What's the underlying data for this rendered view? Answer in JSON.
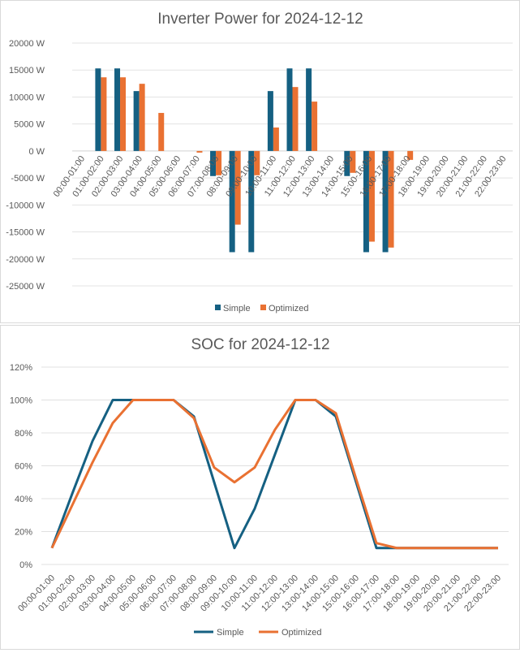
{
  "chart_data": [
    {
      "type": "bar",
      "title": "Inverter Power for 2024-12-12",
      "xlabel": "",
      "ylabel": "",
      "ylim": [
        -25000,
        20000
      ],
      "yticks": [
        20000,
        15000,
        10000,
        5000,
        0,
        -5000,
        -10000,
        -15000,
        -20000,
        -25000
      ],
      "ytick_suffix": " W",
      "grid": true,
      "legend": "bottom",
      "categories": [
        "00:00-01:00",
        "01:00-02:00",
        "02:00-03:00",
        "03:00-04:00",
        "04:00-05:00",
        "05:00-06:00",
        "06:00-07:00",
        "07:00-08:00",
        "08:00-09:00",
        "09:00-10:00",
        "10:00-11:00",
        "11:00-12:00",
        "12:00-13:00",
        "13:00-14:00",
        "14:00-15:00",
        "15:00-16:00",
        "16:00-17:00",
        "17:00-18:00",
        "18:00-19:00",
        "19:00-20:00",
        "20:00-21:00",
        "21:00-22:00",
        "22:00-23:00"
      ],
      "series": [
        {
          "name": "Simple",
          "color": "#156082",
          "values": [
            0,
            15300,
            15300,
            11100,
            0,
            0,
            0,
            -4650,
            -18750,
            -18750,
            11100,
            15300,
            15300,
            0,
            -4650,
            -18750,
            -18750,
            0,
            0,
            0,
            0,
            0,
            0
          ]
        },
        {
          "name": "Optimized",
          "color": "#E97132",
          "values": [
            0,
            13650,
            13650,
            12450,
            7050,
            0,
            -300,
            -4500,
            -13650,
            -4500,
            4350,
            11850,
            9150,
            0,
            -4050,
            -16800,
            -17900,
            -1650,
            0,
            0,
            0,
            0,
            0
          ]
        }
      ]
    },
    {
      "type": "line",
      "title": "SOC for 2024-12-12",
      "xlabel": "",
      "ylabel": "",
      "ylim": [
        0,
        120
      ],
      "yticks": [
        120,
        100,
        80,
        60,
        40,
        20,
        0
      ],
      "ytick_suffix": "%",
      "grid": true,
      "legend": "bottom",
      "categories": [
        "00:00-01:00",
        "01:00-02:00",
        "02:00-03:00",
        "03:00-04:00",
        "04:00-05:00",
        "05:00-06:00",
        "06:00-07:00",
        "07:00-08:00",
        "08:00-09:00",
        "09:00-10:00",
        "10:00-11:00",
        "11:00-12:00",
        "12:00-13:00",
        "13:00-14:00",
        "14:00-15:00",
        "15:00-16:00",
        "16:00-17:00",
        "17:00-18:00",
        "18:00-19:00",
        "19:00-20:00",
        "20:00-21:00",
        "21:00-22:00",
        "22:00-23:00"
      ],
      "series": [
        {
          "name": "Simple",
          "color": "#156082",
          "values": [
            10,
            43,
            75,
            100,
            100,
            100,
            100,
            90,
            50,
            10,
            34,
            67,
            100,
            100,
            90,
            50,
            10,
            10,
            10,
            10,
            10,
            10,
            10
          ]
        },
        {
          "name": "Optimized",
          "color": "#E97132",
          "values": [
            10,
            36,
            62,
            86,
            100,
            100,
            100,
            89,
            59,
            50,
            59,
            82,
            100,
            100,
            92,
            52,
            13,
            10,
            10,
            10,
            10,
            10,
            10
          ]
        }
      ]
    }
  ]
}
